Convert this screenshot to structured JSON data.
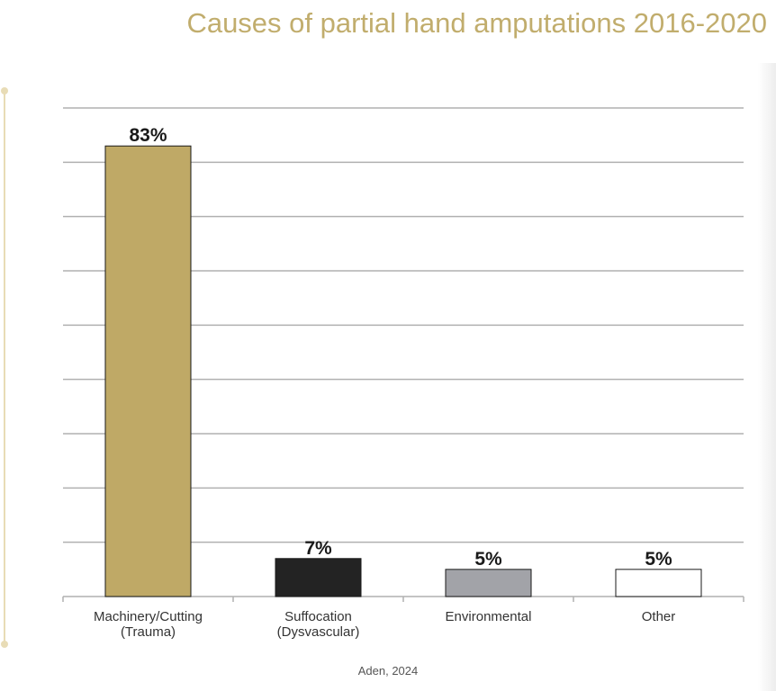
{
  "title": "Causes of partial hand amputations 2016-2020",
  "source": "Aden, 2024",
  "colors": {
    "title": "#c1ad6d",
    "grid": "#b0b0b0",
    "machinery": "#bfa966",
    "suffocation": "#232323",
    "environmental": "#a2a3a8",
    "other": "#ffffff"
  },
  "chart_data": {
    "type": "bar",
    "title": "Causes of partial hand amputations 2016-2020",
    "categories": [
      "Machinery/Cutting\n(Trauma)",
      "Suffocation\n(Dysvascular)",
      "Environmental",
      "Other"
    ],
    "values": [
      83,
      7,
      5,
      5
    ],
    "data_labels": [
      "83%",
      "7%",
      "5%",
      "5%"
    ],
    "bar_colors": [
      "#bfa966",
      "#232323",
      "#a2a3a8",
      "#ffffff"
    ],
    "ylim": [
      0,
      90
    ],
    "grid": true,
    "y_axis_visible": false,
    "legend": "none"
  }
}
